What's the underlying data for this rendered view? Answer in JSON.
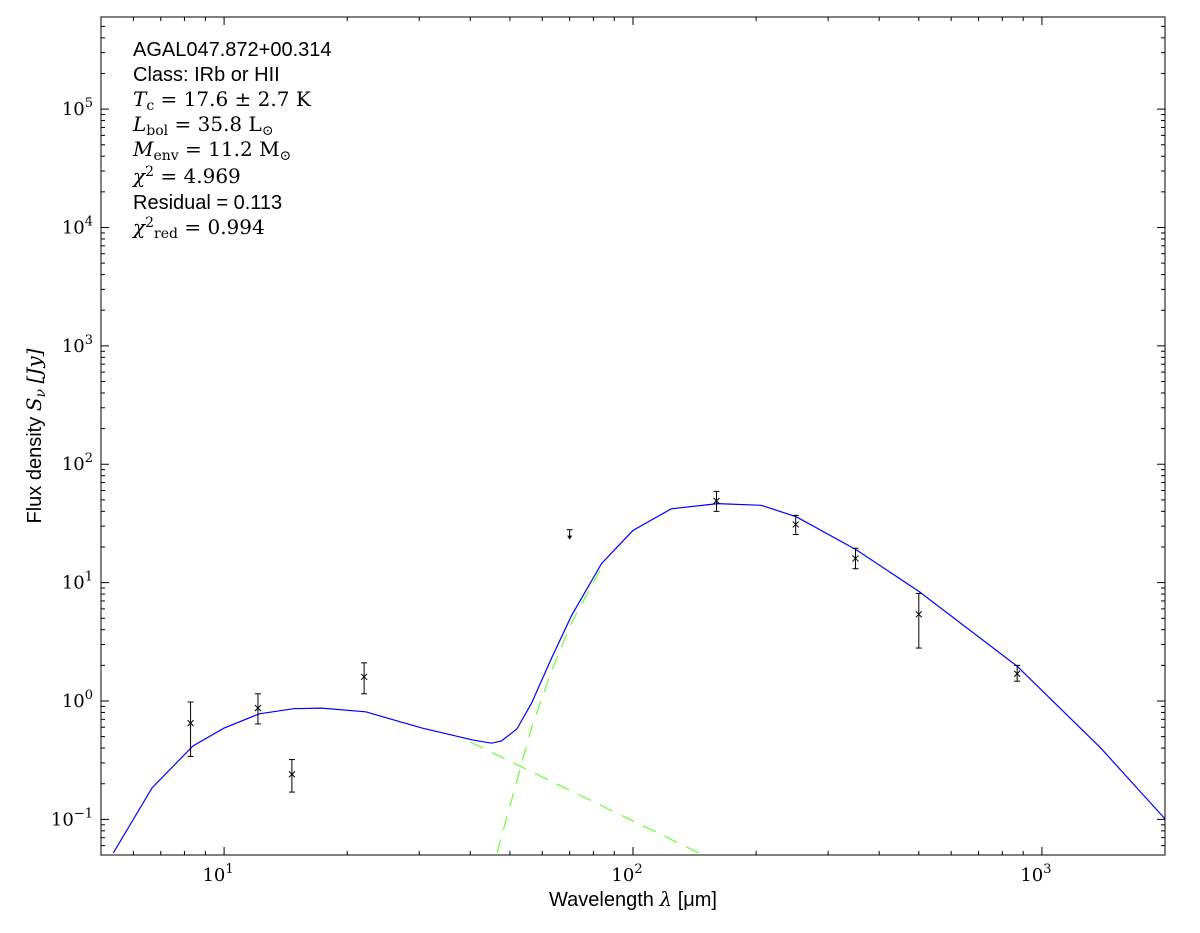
{
  "chart_data": {
    "type": "scatter",
    "xlabel": {
      "text": "Wavelength",
      "symbol": "λ",
      "unit": "[μm]"
    },
    "ylabel": {
      "text": "Flux density",
      "symbol": "S",
      "sub": "ν",
      "unit": "[Jy]"
    },
    "xscale": "log",
    "yscale": "log",
    "xlim": [
      5,
      2000
    ],
    "ylim": [
      0.05,
      600000
    ],
    "grid": false,
    "x_ticks": [
      {
        "base": "10",
        "exp": "1",
        "value": 10
      },
      {
        "base": "10",
        "exp": "2",
        "value": 100
      },
      {
        "base": "10",
        "exp": "3",
        "value": 1000
      }
    ],
    "y_ticks": [
      {
        "base": "10",
        "exp": "−1",
        "value": 0.1
      },
      {
        "base": "10",
        "exp": "0",
        "value": 1
      },
      {
        "base": "10",
        "exp": "1",
        "value": 10
      },
      {
        "base": "10",
        "exp": "2",
        "value": 100
      },
      {
        "base": "10",
        "exp": "3",
        "value": 1000
      },
      {
        "base": "10",
        "exp": "4",
        "value": 10000
      },
      {
        "base": "10",
        "exp": "5",
        "value": 100000
      }
    ],
    "annotations": [
      {
        "style": "sans",
        "main": "AGAL047.872+00.314"
      },
      {
        "style": "sans",
        "main": "Class: IRb or HII"
      },
      {
        "style": "math",
        "main": "T",
        "sub": "c",
        "rest": " = 17.6 ± 2.7 K"
      },
      {
        "style": "math",
        "main": "L",
        "sub": "bol",
        "rest": " = 35.8 L",
        "rest_sub": "⊙"
      },
      {
        "style": "math",
        "main": "M",
        "sub": "env",
        "rest": " = 11.2 M",
        "rest_sub": "⊙"
      },
      {
        "style": "math",
        "main": "χ",
        "sup": "2",
        "rest": " = 4.969"
      },
      {
        "style": "sans",
        "main": "Residual = 0.113"
      },
      {
        "style": "math",
        "main": "χ",
        "sup": "2",
        "sub": "red",
        "rest": " = 0.994"
      }
    ],
    "colors": {
      "model": "#0000ff",
      "components": "#66ff33",
      "points": "#000000"
    },
    "points": [
      {
        "x": 8.28,
        "y": 0.65,
        "ylo": 0.34,
        "yhi": 0.98
      },
      {
        "x": 12.1,
        "y": 0.87,
        "ylo": 0.64,
        "yhi": 1.15
      },
      {
        "x": 14.65,
        "y": 0.24,
        "ylo": 0.17,
        "yhi": 0.32
      },
      {
        "x": 22,
        "y": 1.6,
        "ylo": 1.15,
        "yhi": 2.1
      },
      {
        "x": 160,
        "y": 49,
        "ylo": 40,
        "yhi": 59
      },
      {
        "x": 250,
        "y": 31,
        "ylo": 25.5,
        "yhi": 37
      },
      {
        "x": 350,
        "y": 16,
        "ylo": 13.1,
        "yhi": 19.5
      },
      {
        "x": 500,
        "y": 5.4,
        "ylo": 2.8,
        "yhi": 8.1
      },
      {
        "x": 870,
        "y": 1.7,
        "ylo": 1.47,
        "yhi": 2.0
      }
    ],
    "upper_limits": [
      {
        "x": 70,
        "y": 28
      }
    ],
    "model_curve": [
      [
        5.36,
        0.052
      ],
      [
        6.67,
        0.185
      ],
      [
        8.4,
        0.418
      ],
      [
        10,
        0.59
      ],
      [
        12.2,
        0.78
      ],
      [
        14.8,
        0.86
      ],
      [
        17.3,
        0.87
      ],
      [
        22.2,
        0.81
      ],
      [
        30.5,
        0.59
      ],
      [
        40.4,
        0.47
      ],
      [
        45.1,
        0.44
      ],
      [
        47.7,
        0.46
      ],
      [
        52,
        0.58
      ],
      [
        56.5,
        0.96
      ],
      [
        63.2,
        2.3
      ],
      [
        70.8,
        5.3
      ],
      [
        83.8,
        14.5
      ],
      [
        100,
        27.6
      ],
      [
        124,
        42
      ],
      [
        161,
        46.5
      ],
      [
        206,
        45
      ],
      [
        251,
        36
      ],
      [
        351,
        19
      ],
      [
        501,
        8.4
      ],
      [
        869,
        1.97
      ],
      [
        1393,
        0.4
      ],
      [
        2010,
        0.099
      ]
    ],
    "warm_component": [
      [
        40,
        0.45
      ],
      [
        145,
        0.052
      ]
    ],
    "cold_component": [
      [
        46.5,
        0.052
      ],
      [
        56.5,
        0.6
      ],
      [
        63.2,
        1.8
      ],
      [
        70.8,
        4.6
      ],
      [
        83.8,
        13.5
      ]
    ]
  }
}
